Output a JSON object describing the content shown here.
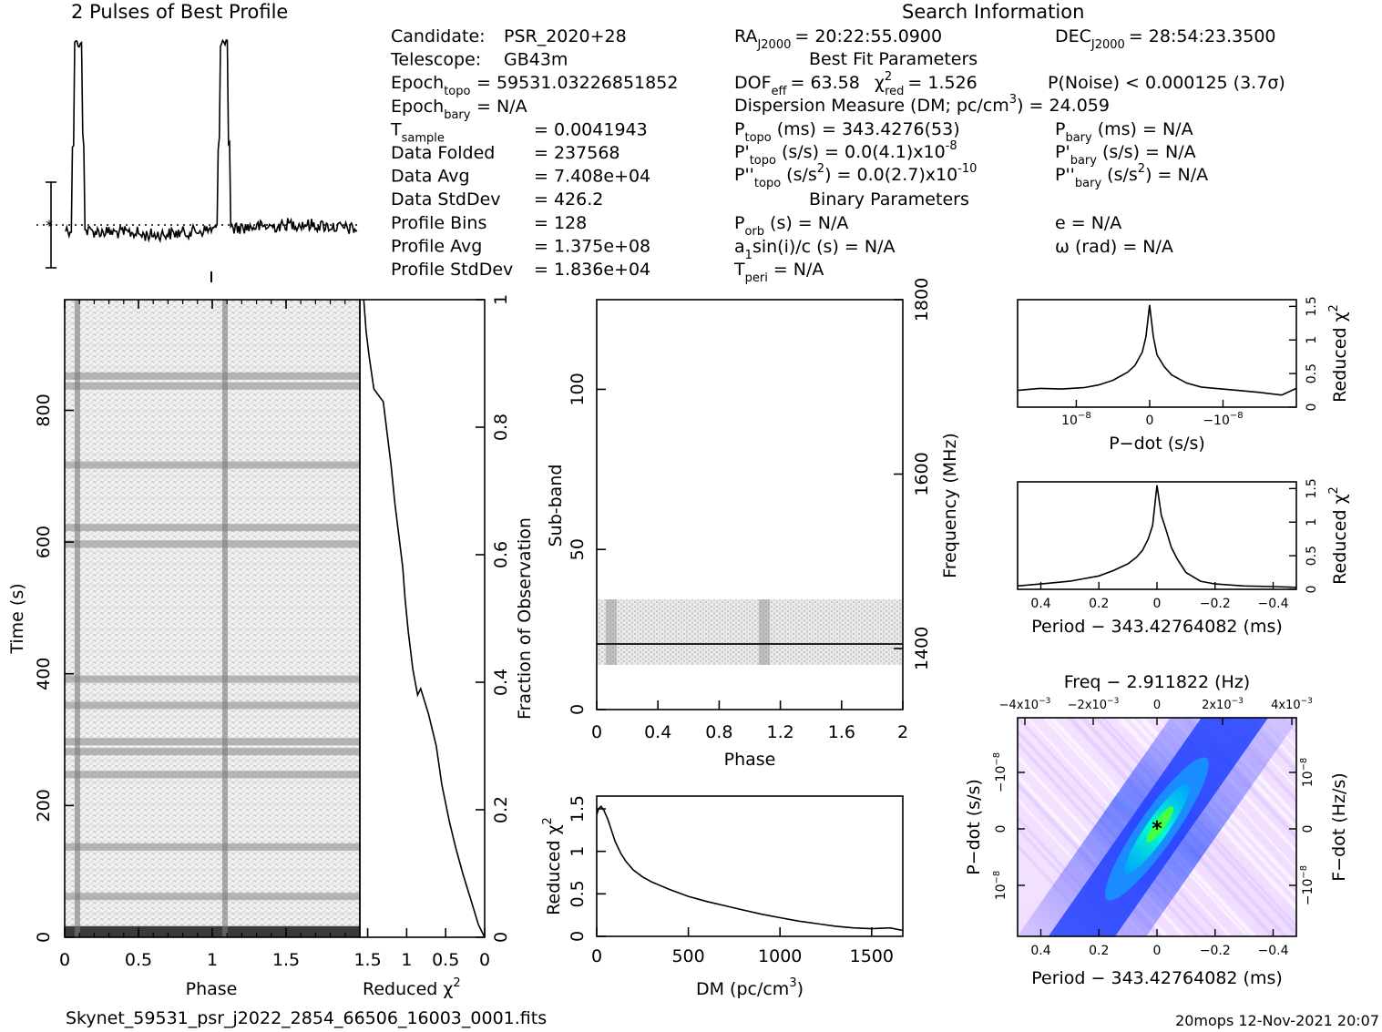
{
  "header": {
    "profile_title": "2 Pulses of Best Profile",
    "search_title": "Search Information",
    "best_fit_title": "Best Fit Parameters",
    "binary_title": "Binary Parameters"
  },
  "info_left": [
    {
      "label": "Candidate:",
      "value": "PSR_2020+28"
    },
    {
      "label": "Telescope:",
      "value": "GB43m"
    },
    {
      "label": "Epoch",
      "sub": "topo",
      "value": "= 59531.03226851852"
    },
    {
      "label": "Epoch",
      "sub": "bary",
      "value": "= N/A"
    },
    {
      "label": "T",
      "sub": "sample",
      "value": "=   0.0041943"
    },
    {
      "label": "Data Folded",
      "value": "=   237568"
    },
    {
      "label": "Data Avg",
      "value": "=   7.408e+04"
    },
    {
      "label": "Data StdDev",
      "value": "=   426.2"
    },
    {
      "label": "Profile Bins",
      "value": "=   128"
    },
    {
      "label": "Profile Avg",
      "value": "=   1.375e+08"
    },
    {
      "label": "Profile StdDev",
      "value": "=   1.836e+04"
    }
  ],
  "info_mid": {
    "ra": "RA",
    "ra_sub": "J2000",
    "ra_value": "= 20:22:55.0900",
    "dec": "DEC",
    "dec_sub": "J2000",
    "dec_value": "= 28:54:23.3500",
    "dof": "DOF",
    "dof_sub": "eff",
    "dof_value": "= 63.58",
    "chi": "χ",
    "chi_sup": "2",
    "chi_sub": "red",
    "chi_value": "= 1.526",
    "pnoise": "P(Noise) < 0.000125   (3.7σ)",
    "dm": "Dispersion Measure (DM; pc/cm",
    "dm_sup": "3",
    "dm_value": ") = 24.059",
    "ptopo": "P",
    "ptopo_sub": "topo",
    "ptopo_value": "(ms)  =   343.4276(53)",
    "pbary": "P",
    "pbary_sub": "bary",
    "pbary_value": "(ms) = N/A",
    "pdtopo": "P'",
    "pdtopo_sub": "topo",
    "pdtopo_value": "(s/s) = 0.0(4.1)x10",
    "pdtopo_exp": "-8",
    "pdbary": "P'",
    "pdbary_sub": "bary",
    "pdbary_value": "(s/s) = N/A",
    "pddtopo": "P''",
    "pddtopo_sub": "topo",
    "pddtopo_value": "(s/s",
    "pddtopo_sup": "2",
    "pddtopo_value2": ") = 0.0(2.7)x10",
    "pddtopo_exp": "-10",
    "pddbary": "P''",
    "pddbary_sub": "bary",
    "pddbary_value": "(s/s",
    "pddbary_sup": "2",
    "pddbary_value2": ") = N/A",
    "porb": "P",
    "porb_sub": "orb",
    "porb_value": "(s) = N/A",
    "e_value": "e = N/A",
    "asini": "a",
    "asini_sub": "1",
    "asini_value": "sin(i)/c (s) = N/A",
    "omega_value": "ω (rad) = N/A",
    "tperi": "T",
    "tperi_sub": "peri",
    "tperi_value": "= N/A"
  },
  "footer": {
    "filename": "Skynet_59531_psr_j2022_2854_66506_16003_0001.fits",
    "stamp": "20mops  12-Nov-2021  20:07"
  },
  "chart_data": [
    {
      "id": "pulse-profile",
      "type": "line",
      "title": "2 Pulses of Best Profile",
      "xlim": [
        0,
        2
      ],
      "pulse_phase": [
        0.086,
        1.086
      ],
      "note_symbol": "*",
      "series": [
        {
          "values": []
        }
      ]
    },
    {
      "id": "time-phase",
      "type": "heatmap",
      "xlabel": "Phase",
      "ylabel": "Time (s)",
      "xlim": [
        0,
        2
      ],
      "ylim": [
        0,
        968
      ],
      "xticks": [
        "0",
        "0.5",
        "1",
        "1.5"
      ],
      "yticks": [
        0,
        200,
        400,
        600,
        800
      ],
      "colormap": "gray",
      "pulse_phase": [
        0.086,
        1.086
      ],
      "dark_time_bands_s": [
        12,
        62,
        137,
        247,
        282,
        297,
        352,
        392,
        597,
        622,
        717,
        837,
        852
      ]
    },
    {
      "id": "reduced-chi2-vs-time",
      "type": "line",
      "xlabel": "Reduced χ2",
      "ylabel_right": "Fraction of Observation",
      "xlim": [
        1.6,
        0
      ],
      "ylim": [
        0,
        1
      ],
      "xticks": [
        "1.5",
        "1",
        "0.5",
        "0"
      ],
      "yticks_right": [
        "0",
        "0.2",
        "0.4",
        "0.6",
        "0.8",
        "1"
      ],
      "x": [
        0.0,
        0.08,
        0.18,
        0.28,
        0.37,
        0.45,
        0.55,
        0.62,
        0.72,
        0.82,
        0.86,
        0.92,
        0.98,
        1.02,
        1.05,
        1.1,
        1.15,
        1.2,
        1.25,
        1.3,
        1.42,
        1.48,
        1.52,
        1.55
      ],
      "y": [
        0.0,
        0.02,
        0.06,
        0.1,
        0.14,
        0.18,
        0.24,
        0.3,
        0.35,
        0.39,
        0.38,
        0.42,
        0.48,
        0.53,
        0.58,
        0.63,
        0.68,
        0.74,
        0.79,
        0.84,
        0.86,
        0.91,
        0.95,
        1.0
      ]
    },
    {
      "id": "subband-phase",
      "type": "heatmap",
      "xlabel": "Phase",
      "ylabel": "Sub-band",
      "ylabel_right": "Frequency (MHz)",
      "xlim": [
        0,
        2
      ],
      "ylim": [
        0,
        128
      ],
      "xticks": [
        "0",
        "0.4",
        "0.8",
        "1.2",
        "1.6",
        "2"
      ],
      "yticks": [
        0,
        50,
        100
      ],
      "yticks_right": [
        "1400",
        "1600",
        "1800"
      ],
      "freq_axis_mhz": [
        1330,
        1800
      ],
      "data_subbands": [
        14,
        35
      ],
      "strong_subband": 20.5,
      "colormap": "gray"
    },
    {
      "id": "dm-curve",
      "type": "line",
      "xlabel": "DM (pc/cm3)",
      "ylabel": "Reduced χ2",
      "xlim": [
        0,
        1670
      ],
      "ylim": [
        0,
        1.65
      ],
      "xticks": [
        0,
        500,
        1000,
        1500
      ],
      "yticks": [
        "0",
        "0.5",
        "1",
        "1.5"
      ],
      "x": [
        0,
        10,
        24,
        40,
        60,
        80,
        100,
        130,
        160,
        200,
        250,
        300,
        400,
        500,
        600,
        700,
        800,
        900,
        1000,
        1100,
        1200,
        1300,
        1400,
        1500,
        1600,
        1670
      ],
      "y": [
        1.43,
        1.5,
        1.53,
        1.48,
        1.38,
        1.25,
        1.12,
        0.98,
        0.88,
        0.78,
        0.7,
        0.64,
        0.55,
        0.47,
        0.41,
        0.36,
        0.31,
        0.26,
        0.22,
        0.18,
        0.15,
        0.12,
        0.1,
        0.09,
        0.1,
        0.07
      ]
    },
    {
      "id": "pdot-curve",
      "type": "line",
      "xlabel": "P−dot (s/s)",
      "ylabel_right": "Reduced χ2",
      "xlim": [
        1.8e-08,
        -2e-08
      ],
      "ylim": [
        0,
        1.6
      ],
      "xticks": [
        "10",
        "0",
        "−10"
      ],
      "xticks_exp": "−8",
      "yticks_right": [
        "0",
        "0.5",
        "1",
        "1.5"
      ],
      "x": [
        1.8e-08,
        1.5e-08,
        1.2e-08,
        9e-09,
        7e-09,
        5e-09,
        3e-09,
        2e-09,
        1e-09,
        5e-10,
        0,
        -5e-10,
        -1e-09,
        -2e-09,
        -3e-09,
        -5e-09,
        -7e-09,
        -9e-09,
        -1.2e-08,
        -1.5e-08,
        -1.8e-08,
        -2e-08
      ],
      "y": [
        0.25,
        0.28,
        0.27,
        0.29,
        0.33,
        0.4,
        0.52,
        0.62,
        0.82,
        1.05,
        1.52,
        1.05,
        0.78,
        0.6,
        0.48,
        0.36,
        0.3,
        0.28,
        0.25,
        0.22,
        0.18,
        0.28
      ]
    },
    {
      "id": "period-curve",
      "type": "line",
      "xlabel": "Period − 343.42764082 (ms)",
      "ylabel_right": "Reduced χ2",
      "xlim": [
        0.48,
        -0.48
      ],
      "ylim": [
        0,
        1.6
      ],
      "xticks": [
        "0.4",
        "0.2",
        "0",
        "−0.2",
        "−0.4"
      ],
      "yticks_right": [
        "0",
        "0.5",
        "1",
        "1.5"
      ],
      "x": [
        0.48,
        0.4,
        0.3,
        0.2,
        0.15,
        0.1,
        0.07,
        0.05,
        0.03,
        0.015,
        0.0,
        -0.015,
        -0.03,
        -0.05,
        -0.07,
        -0.1,
        -0.15,
        -0.2,
        -0.3,
        -0.4,
        -0.48
      ],
      "y": [
        0.05,
        0.08,
        0.12,
        0.2,
        0.28,
        0.38,
        0.48,
        0.58,
        0.75,
        0.95,
        1.55,
        1.1,
        0.9,
        0.62,
        0.45,
        0.25,
        0.12,
        0.08,
        0.05,
        0.04,
        0.03
      ]
    },
    {
      "id": "p-pdot-plane",
      "type": "heatmap",
      "title": "Freq − 2.911822 (Hz)",
      "xlabel": "Period − 343.42764082 (ms)",
      "ylabel": "P−dot (s/s)",
      "ylabel_right": "F−dot (Hz/s)",
      "xlim": [
        0.48,
        -0.48
      ],
      "ylim": [
        -1.5e-08,
        1.5e-08
      ],
      "xticks": [
        "0.4",
        "0.2",
        "0",
        "−0.2",
        "−0.4"
      ],
      "top_xticks": [
        "−4x10",
        "−2x10",
        "0",
        "2x10",
        "4x10"
      ],
      "top_xticks_exp": "−3",
      "yticks": [
        "−10",
        "0",
        "10"
      ],
      "yticks_exp": "−8",
      "best_marker": "*",
      "colormap": "blue-cyan-green",
      "colors": [
        "#f7e8ff",
        "#c8b4ff",
        "#0033ff",
        "#00ccff",
        "#33ff33"
      ]
    }
  ]
}
